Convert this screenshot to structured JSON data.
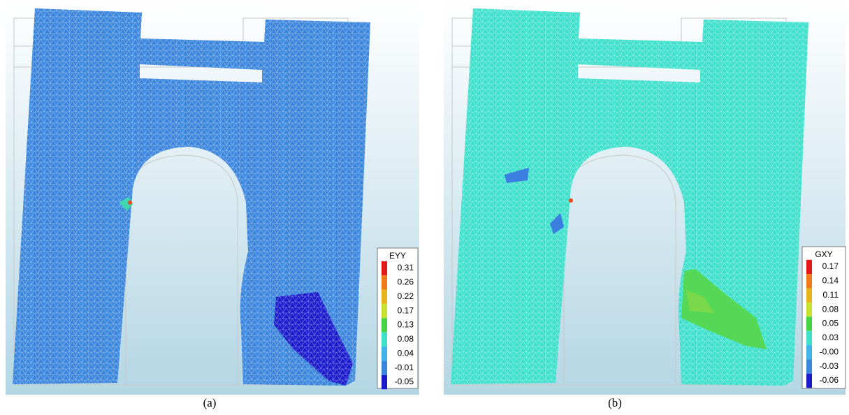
{
  "panels": [
    {
      "caption": "(a)",
      "legend": {
        "title": "EYY",
        "labels": [
          "0.31",
          "0.26",
          "0.22",
          "0.17",
          "0.13",
          "0.08",
          "0.04",
          "-0.01",
          "-0.05"
        ]
      }
    },
    {
      "caption": "(b)",
      "legend": {
        "title": "GXY",
        "labels": [
          "0.17",
          "0.14",
          "0.11",
          "0.08",
          "0.05",
          "0.03",
          "-0.00",
          "-0.03",
          "-0.06"
        ]
      }
    }
  ]
}
